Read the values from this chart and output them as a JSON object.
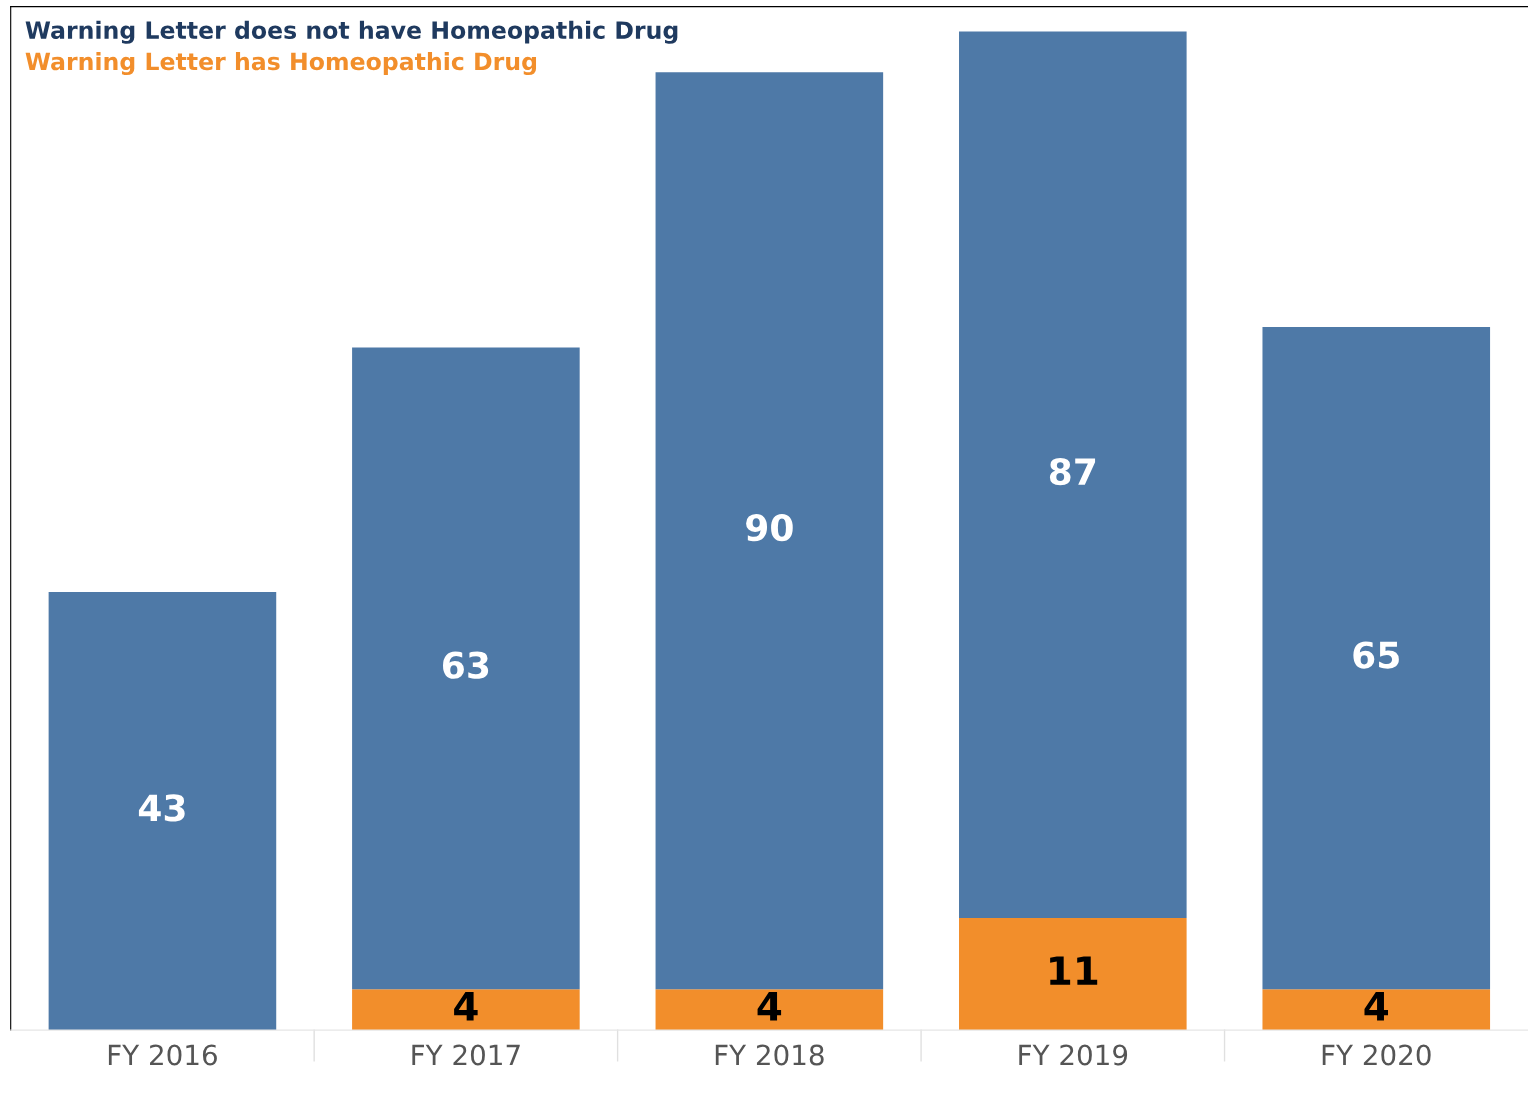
{
  "chart_data": {
    "type": "bar",
    "stacked": true,
    "categories": [
      "FY 2016",
      "FY 2017",
      "FY 2018",
      "FY 2019",
      "FY 2020"
    ],
    "series": [
      {
        "name": "Warning Letter has Homeopathic Drug",
        "color": "#f28e2b",
        "values": [
          null,
          4,
          4,
          11,
          4
        ]
      },
      {
        "name": "Warning Letter does not have Homeopathic Drug",
        "color": "#4e79a7",
        "values": [
          43,
          63,
          90,
          87,
          65
        ]
      }
    ],
    "data_labels": true,
    "legend": "top left",
    "grid": false
  }
}
